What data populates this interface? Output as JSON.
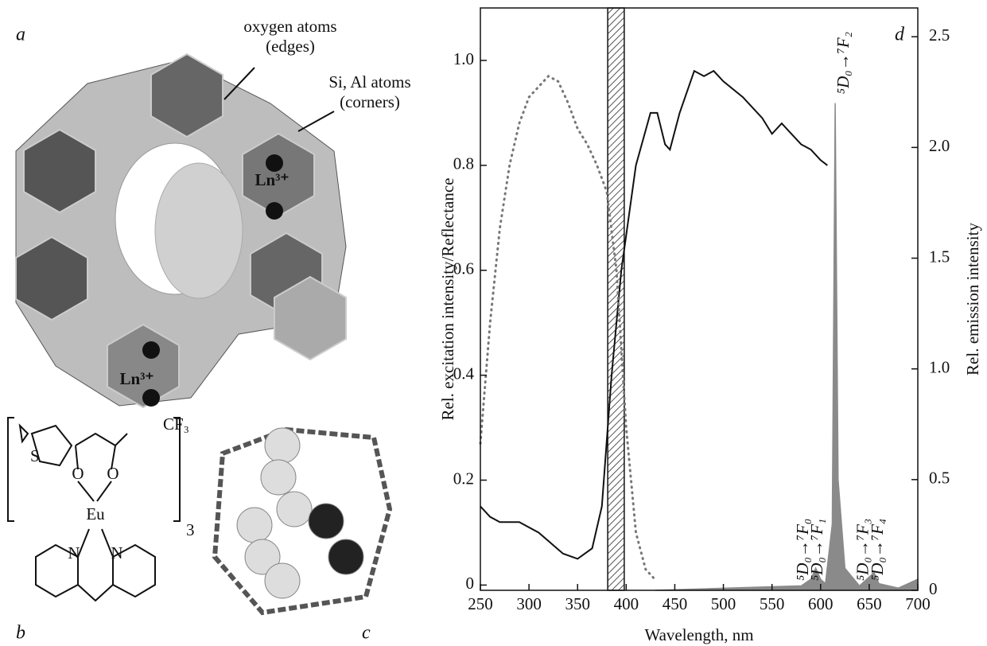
{
  "panels": {
    "a": "a",
    "b": "b",
    "c": "c",
    "d": "d",
    "oxygen_label": [
      "oxygen atoms",
      "(edges)"
    ],
    "si_al_label": [
      "Si, Al atoms",
      "(corners)"
    ],
    "ln_labels": [
      "Ln³⁺",
      "Ln³⁺"
    ],
    "molecule": {
      "cf3": "CF₃",
      "s": "S",
      "o": [
        "O",
        "O"
      ],
      "eu": "Eu",
      "n": [
        "N",
        "N"
      ],
      "subscript": "3"
    }
  },
  "chart_data": {
    "type": "line",
    "xlabel": "Wavelength, nm",
    "ylabel": "Rel. excitation intensity/Reflectance",
    "y2label": "Rel. emission intensity",
    "xlim": [
      250,
      700
    ],
    "xticks": [
      250,
      300,
      350,
      400,
      450,
      500,
      550,
      600,
      650,
      700
    ],
    "ylim": [
      -0.01,
      1.1
    ],
    "yticks": [
      0,
      0.2,
      0.4,
      0.6,
      0.8,
      {
        "value": 1,
        "label": "1.0"
      }
    ],
    "y2lim": [
      0,
      2.63
    ],
    "y2ticks": [
      0,
      0.5,
      {
        "value": 1,
        "label": "1.0"
      },
      1.5,
      {
        "value": 2,
        "label": "2.0"
      },
      2.5
    ],
    "shaded_band": [
      381,
      398
    ],
    "series": [
      {
        "style": "solid",
        "color": "#111111",
        "x": [
          250,
          260,
          270,
          290,
          310,
          335,
          350,
          365,
          375,
          385,
          395,
          410,
          425,
          432,
          440,
          445,
          455,
          470,
          480,
          490,
          500,
          520,
          540,
          550,
          560,
          570,
          580,
          590,
          600,
          607
        ],
        "values": [
          0.15,
          0.13,
          0.12,
          0.12,
          0.1,
          0.06,
          0.05,
          0.07,
          0.15,
          0.4,
          0.6,
          0.8,
          0.9,
          0.9,
          0.84,
          0.83,
          0.9,
          0.98,
          0.97,
          0.98,
          0.96,
          0.93,
          0.89,
          0.86,
          0.88,
          0.86,
          0.84,
          0.83,
          0.81,
          0.8
        ]
      },
      {
        "style": "dotted",
        "color": "#777777",
        "x": [
          250,
          260,
          270,
          280,
          290,
          300,
          310,
          320,
          330,
          340,
          350,
          360,
          370,
          380,
          390,
          400,
          410,
          420,
          430
        ],
        "values": [
          0.27,
          0.5,
          0.68,
          0.8,
          0.88,
          0.93,
          0.95,
          0.97,
          0.96,
          0.92,
          0.87,
          0.84,
          0.8,
          0.75,
          0.6,
          0.3,
          0.1,
          0.03,
          0.01
        ]
      },
      {
        "style": "area",
        "color": "#8a8a8a",
        "axis": "y2",
        "x": [
          430,
          580,
          590,
          595,
          600,
          605,
          612,
          615,
          618,
          625,
          640,
          655,
          660,
          680,
          700
        ],
        "values": [
          0,
          0.02,
          0.05,
          0.1,
          0.05,
          0.03,
          0.3,
          2.2,
          0.5,
          0.1,
          0.02,
          0.08,
          0.03,
          0.01,
          0.05
        ]
      }
    ],
    "annotations": [
      {
        "text": "⁵D₀→⁷F₂",
        "x": 625
      },
      {
        "text": "⁵D₀→⁷F₀",
        "x": 583
      },
      {
        "text": "⁵D₀→⁷F₁",
        "x": 598
      },
      {
        "text": "⁵D₀→⁷F₃",
        "x": 645
      },
      {
        "text": "⁵D₀→⁷F₄",
        "x": 660
      }
    ]
  }
}
